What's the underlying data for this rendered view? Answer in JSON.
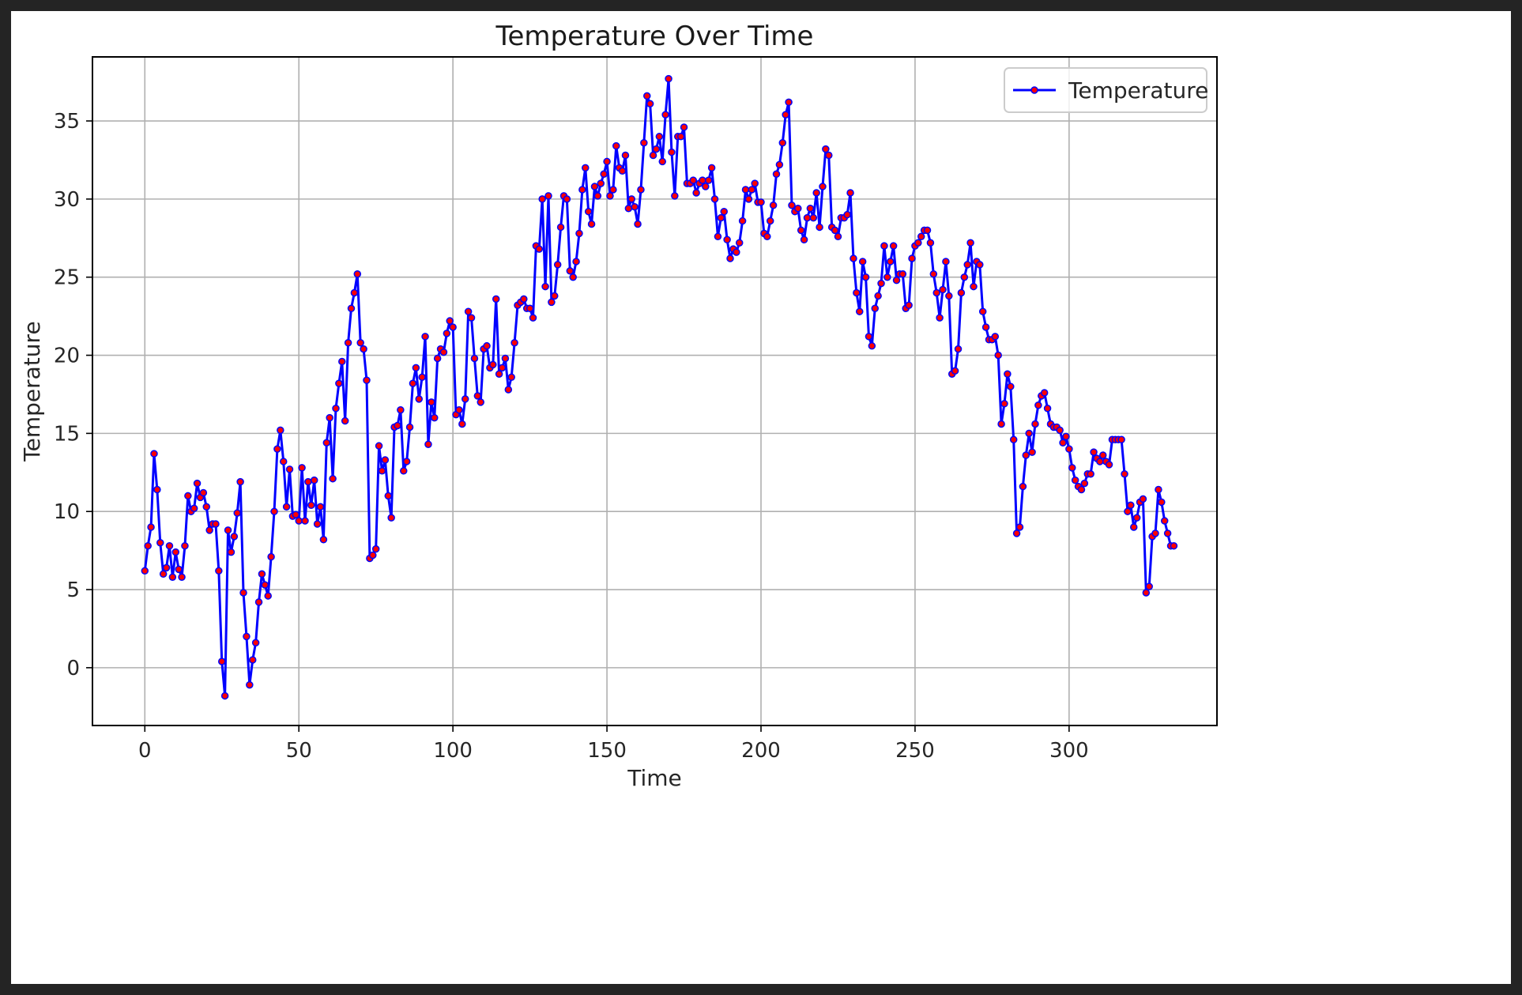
{
  "chart_data": {
    "type": "line",
    "title": "Temperature Over Time",
    "xlabel": "Time",
    "ylabel": "Temperature",
    "xlim": [
      -17,
      348
    ],
    "ylim": [
      -3.7,
      39.1
    ],
    "x_ticks": [
      0,
      50,
      100,
      150,
      200,
      250,
      300
    ],
    "y_ticks": [
      0,
      5,
      10,
      15,
      20,
      25,
      30,
      35
    ],
    "grid": true,
    "legend_position": "top-right",
    "line_color": "#0000ff",
    "marker_color": "#ff0000",
    "series": [
      {
        "name": "Temperature",
        "x_start": 0,
        "x_step": 1,
        "values": [
          6.2,
          7.8,
          9.0,
          13.7,
          11.4,
          8.0,
          6.0,
          6.4,
          7.8,
          5.8,
          7.4,
          6.3,
          5.8,
          7.8,
          11.0,
          10.0,
          10.2,
          11.8,
          10.9,
          11.2,
          10.3,
          8.8,
          9.2,
          9.2,
          6.2,
          0.4,
          -1.8,
          8.8,
          7.4,
          8.4,
          9.9,
          11.9,
          4.8,
          2.0,
          -1.1,
          0.5,
          1.6,
          4.2,
          6.0,
          5.3,
          4.6,
          7.1,
          10.0,
          14.0,
          15.2,
          13.2,
          10.3,
          12.7,
          9.7,
          9.8,
          9.4,
          12.8,
          9.4,
          11.9,
          10.4,
          12.0,
          9.2,
          10.3,
          8.2,
          14.4,
          16.0,
          12.1,
          16.6,
          18.2,
          19.6,
          15.8,
          20.8,
          23.0,
          24.0,
          25.2,
          20.8,
          20.4,
          18.4,
          7.0,
          7.2,
          7.6,
          14.2,
          12.6,
          13.3,
          11.0,
          9.6,
          15.4,
          15.5,
          16.5,
          12.6,
          13.2,
          15.4,
          18.2,
          19.2,
          17.2,
          18.6,
          21.2,
          14.3,
          17.0,
          16.0,
          19.8,
          20.4,
          20.2,
          21.4,
          22.2,
          21.8,
          16.2,
          16.5,
          15.6,
          17.2,
          22.8,
          22.4,
          19.8,
          17.4,
          17.0,
          20.4,
          20.6,
          19.2,
          19.4,
          23.6,
          18.8,
          19.2,
          19.8,
          17.8,
          18.6,
          20.8,
          23.2,
          23.4,
          23.6,
          23.0,
          23.0,
          22.4,
          27.0,
          26.8,
          30.0,
          24.4,
          30.2,
          23.4,
          23.8,
          25.8,
          28.2,
          30.2,
          30.0,
          25.4,
          25.0,
          26.0,
          27.8,
          30.6,
          32.0,
          29.2,
          28.4,
          30.8,
          30.2,
          31.0,
          31.6,
          32.4,
          30.2,
          30.6,
          33.4,
          32.0,
          31.8,
          32.8,
          29.4,
          30.0,
          29.5,
          28.4,
          30.6,
          33.6,
          36.6,
          36.1,
          32.8,
          33.2,
          34.0,
          32.4,
          35.4,
          37.7,
          33.0,
          30.2,
          34.0,
          34.0,
          34.6,
          31.0,
          31.0,
          31.2,
          30.4,
          31.0,
          31.2,
          30.8,
          31.2,
          32.0,
          30.0,
          27.6,
          28.8,
          29.2,
          27.4,
          26.2,
          26.8,
          26.6,
          27.2,
          28.6,
          30.6,
          30.0,
          30.6,
          31.0,
          29.8,
          29.8,
          27.8,
          27.6,
          28.6,
          29.6,
          31.6,
          32.2,
          33.6,
          35.4,
          36.2,
          29.6,
          29.2,
          29.4,
          28.0,
          27.4,
          28.8,
          29.4,
          28.8,
          30.4,
          28.2,
          30.8,
          33.2,
          32.8,
          28.2,
          28.0,
          27.6,
          28.8,
          28.8,
          29.0,
          30.4,
          26.2,
          24.0,
          22.8,
          26.0,
          25.0,
          21.2,
          20.6,
          23.0,
          23.8,
          24.6,
          27.0,
          25.0,
          26.0,
          27.0,
          24.8,
          25.2,
          25.2,
          23.0,
          23.2,
          26.2,
          27.0,
          27.2,
          27.6,
          28.0,
          28.0,
          27.2,
          25.2,
          24.0,
          22.4,
          24.2,
          26.0,
          23.8,
          18.8,
          19.0,
          20.4,
          24.0,
          25.0,
          25.8,
          27.2,
          24.4,
          26.0,
          25.8,
          22.8,
          21.8,
          21.0,
          21.0,
          21.2,
          20.0,
          15.6,
          16.9,
          18.8,
          18.0,
          14.6,
          8.6,
          9.0,
          11.6,
          13.6,
          15.0,
          13.8,
          15.6,
          16.8,
          17.4,
          17.6,
          16.6,
          15.6,
          15.4,
          15.4,
          15.2,
          14.4,
          14.8,
          14.0,
          12.8,
          12.0,
          11.6,
          11.4,
          11.8,
          12.4,
          12.4,
          13.8,
          13.4,
          13.2,
          13.6,
          13.2,
          13.0,
          14.6,
          14.6,
          14.6,
          14.6,
          12.4,
          10.0,
          10.4,
          9.0,
          9.6,
          10.6,
          10.8,
          4.8,
          5.2,
          8.4,
          8.6,
          11.4,
          10.6,
          9.4,
          8.6,
          7.8,
          7.8
        ]
      }
    ]
  }
}
